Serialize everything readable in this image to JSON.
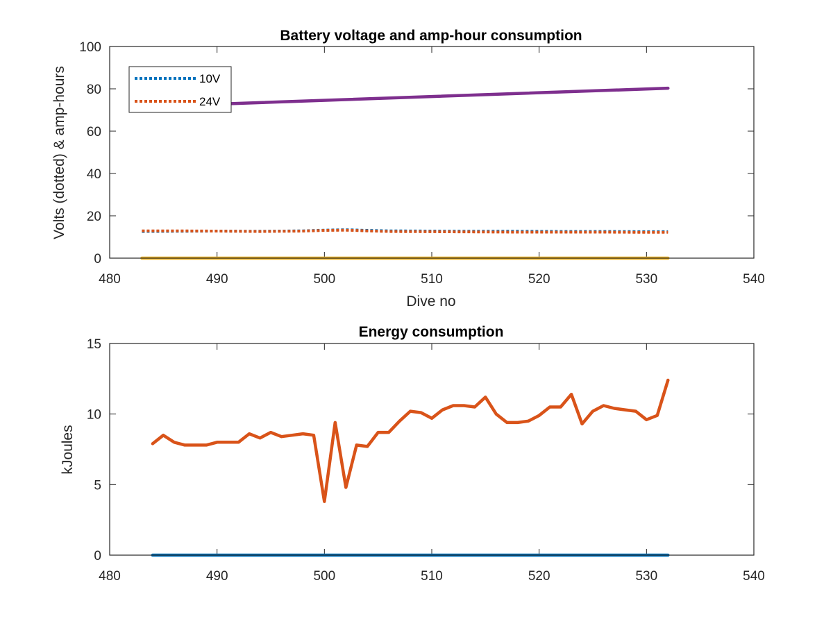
{
  "chart_data": [
    {
      "type": "line",
      "title": "Battery voltage and amp-hour consumption",
      "xlabel": "Dive no",
      "ylabel": "Volts (dotted) & amp-hours",
      "xlim": [
        480,
        540
      ],
      "ylim": [
        0,
        100
      ],
      "xticks": [
        480,
        490,
        500,
        510,
        520,
        530,
        540
      ],
      "yticks": [
        0,
        20,
        40,
        60,
        80,
        100
      ],
      "legend_position": "top-left",
      "series": [
        {
          "name": "10V",
          "style": "dotted",
          "color": "#0072BD",
          "in_legend": true,
          "x": [
            483,
            486,
            490,
            494,
            498,
            500,
            502,
            504,
            506,
            510,
            514,
            518,
            522,
            526,
            530,
            532
          ],
          "y": [
            12.6,
            12.7,
            12.8,
            12.7,
            12.9,
            13.2,
            13.4,
            13.1,
            12.9,
            12.8,
            12.7,
            12.7,
            12.6,
            12.6,
            12.5,
            12.5
          ]
        },
        {
          "name": "24V",
          "style": "dotted",
          "color": "#D95319",
          "in_legend": true,
          "x": [
            483,
            486,
            490,
            494,
            498,
            500,
            502,
            504,
            506,
            510,
            514,
            518,
            522,
            526,
            530,
            532
          ],
          "y": [
            12.9,
            12.9,
            12.8,
            12.6,
            12.8,
            13.1,
            13.2,
            12.9,
            12.6,
            12.5,
            12.4,
            12.3,
            12.3,
            12.3,
            12.2,
            12.2
          ]
        },
        {
          "style": "solid",
          "color": "#7E2F8E",
          "in_legend": false,
          "x": [
            483,
            532
          ],
          "y": [
            71.5,
            80.3
          ]
        },
        {
          "style": "solid",
          "color": "#EDB120",
          "in_legend": false,
          "x": [
            483,
            532
          ],
          "y": [
            0,
            0
          ]
        }
      ]
    },
    {
      "type": "line",
      "title": "Energy consumption",
      "xlabel": "",
      "ylabel": "kJoules",
      "xlim": [
        480,
        540
      ],
      "ylim": [
        0,
        15
      ],
      "xticks": [
        480,
        490,
        500,
        510,
        520,
        530,
        540
      ],
      "yticks": [
        0,
        5,
        10,
        15
      ],
      "series": [
        {
          "style": "solid",
          "color": "#D95319",
          "x": [
            484,
            485,
            486,
            487,
            488,
            489,
            490,
            491,
            492,
            493,
            494,
            495,
            496,
            497,
            498,
            499,
            500,
            501,
            502,
            503,
            504,
            505,
            506,
            507,
            508,
            509,
            510,
            511,
            512,
            513,
            514,
            515,
            516,
            517,
            518,
            519,
            520,
            521,
            522,
            523,
            524,
            525,
            526,
            527,
            528,
            529,
            530,
            531,
            532
          ],
          "y": [
            7.9,
            8.5,
            8.0,
            7.8,
            7.8,
            7.8,
            8.0,
            8.0,
            8.0,
            8.6,
            8.3,
            8.7,
            8.4,
            8.5,
            8.6,
            8.5,
            3.8,
            9.4,
            4.8,
            7.8,
            7.7,
            8.7,
            8.7,
            9.5,
            10.2,
            10.1,
            9.7,
            10.3,
            10.6,
            10.6,
            10.5,
            11.2,
            10.0,
            9.4,
            9.4,
            9.5,
            9.9,
            10.5,
            10.5,
            11.4,
            9.3,
            10.2,
            10.6,
            10.4,
            10.3,
            10.2,
            9.6,
            9.9,
            12.4
          ]
        },
        {
          "style": "solid",
          "color": "#0072BD",
          "x": [
            484,
            532
          ],
          "y": [
            0,
            0
          ]
        }
      ]
    }
  ]
}
